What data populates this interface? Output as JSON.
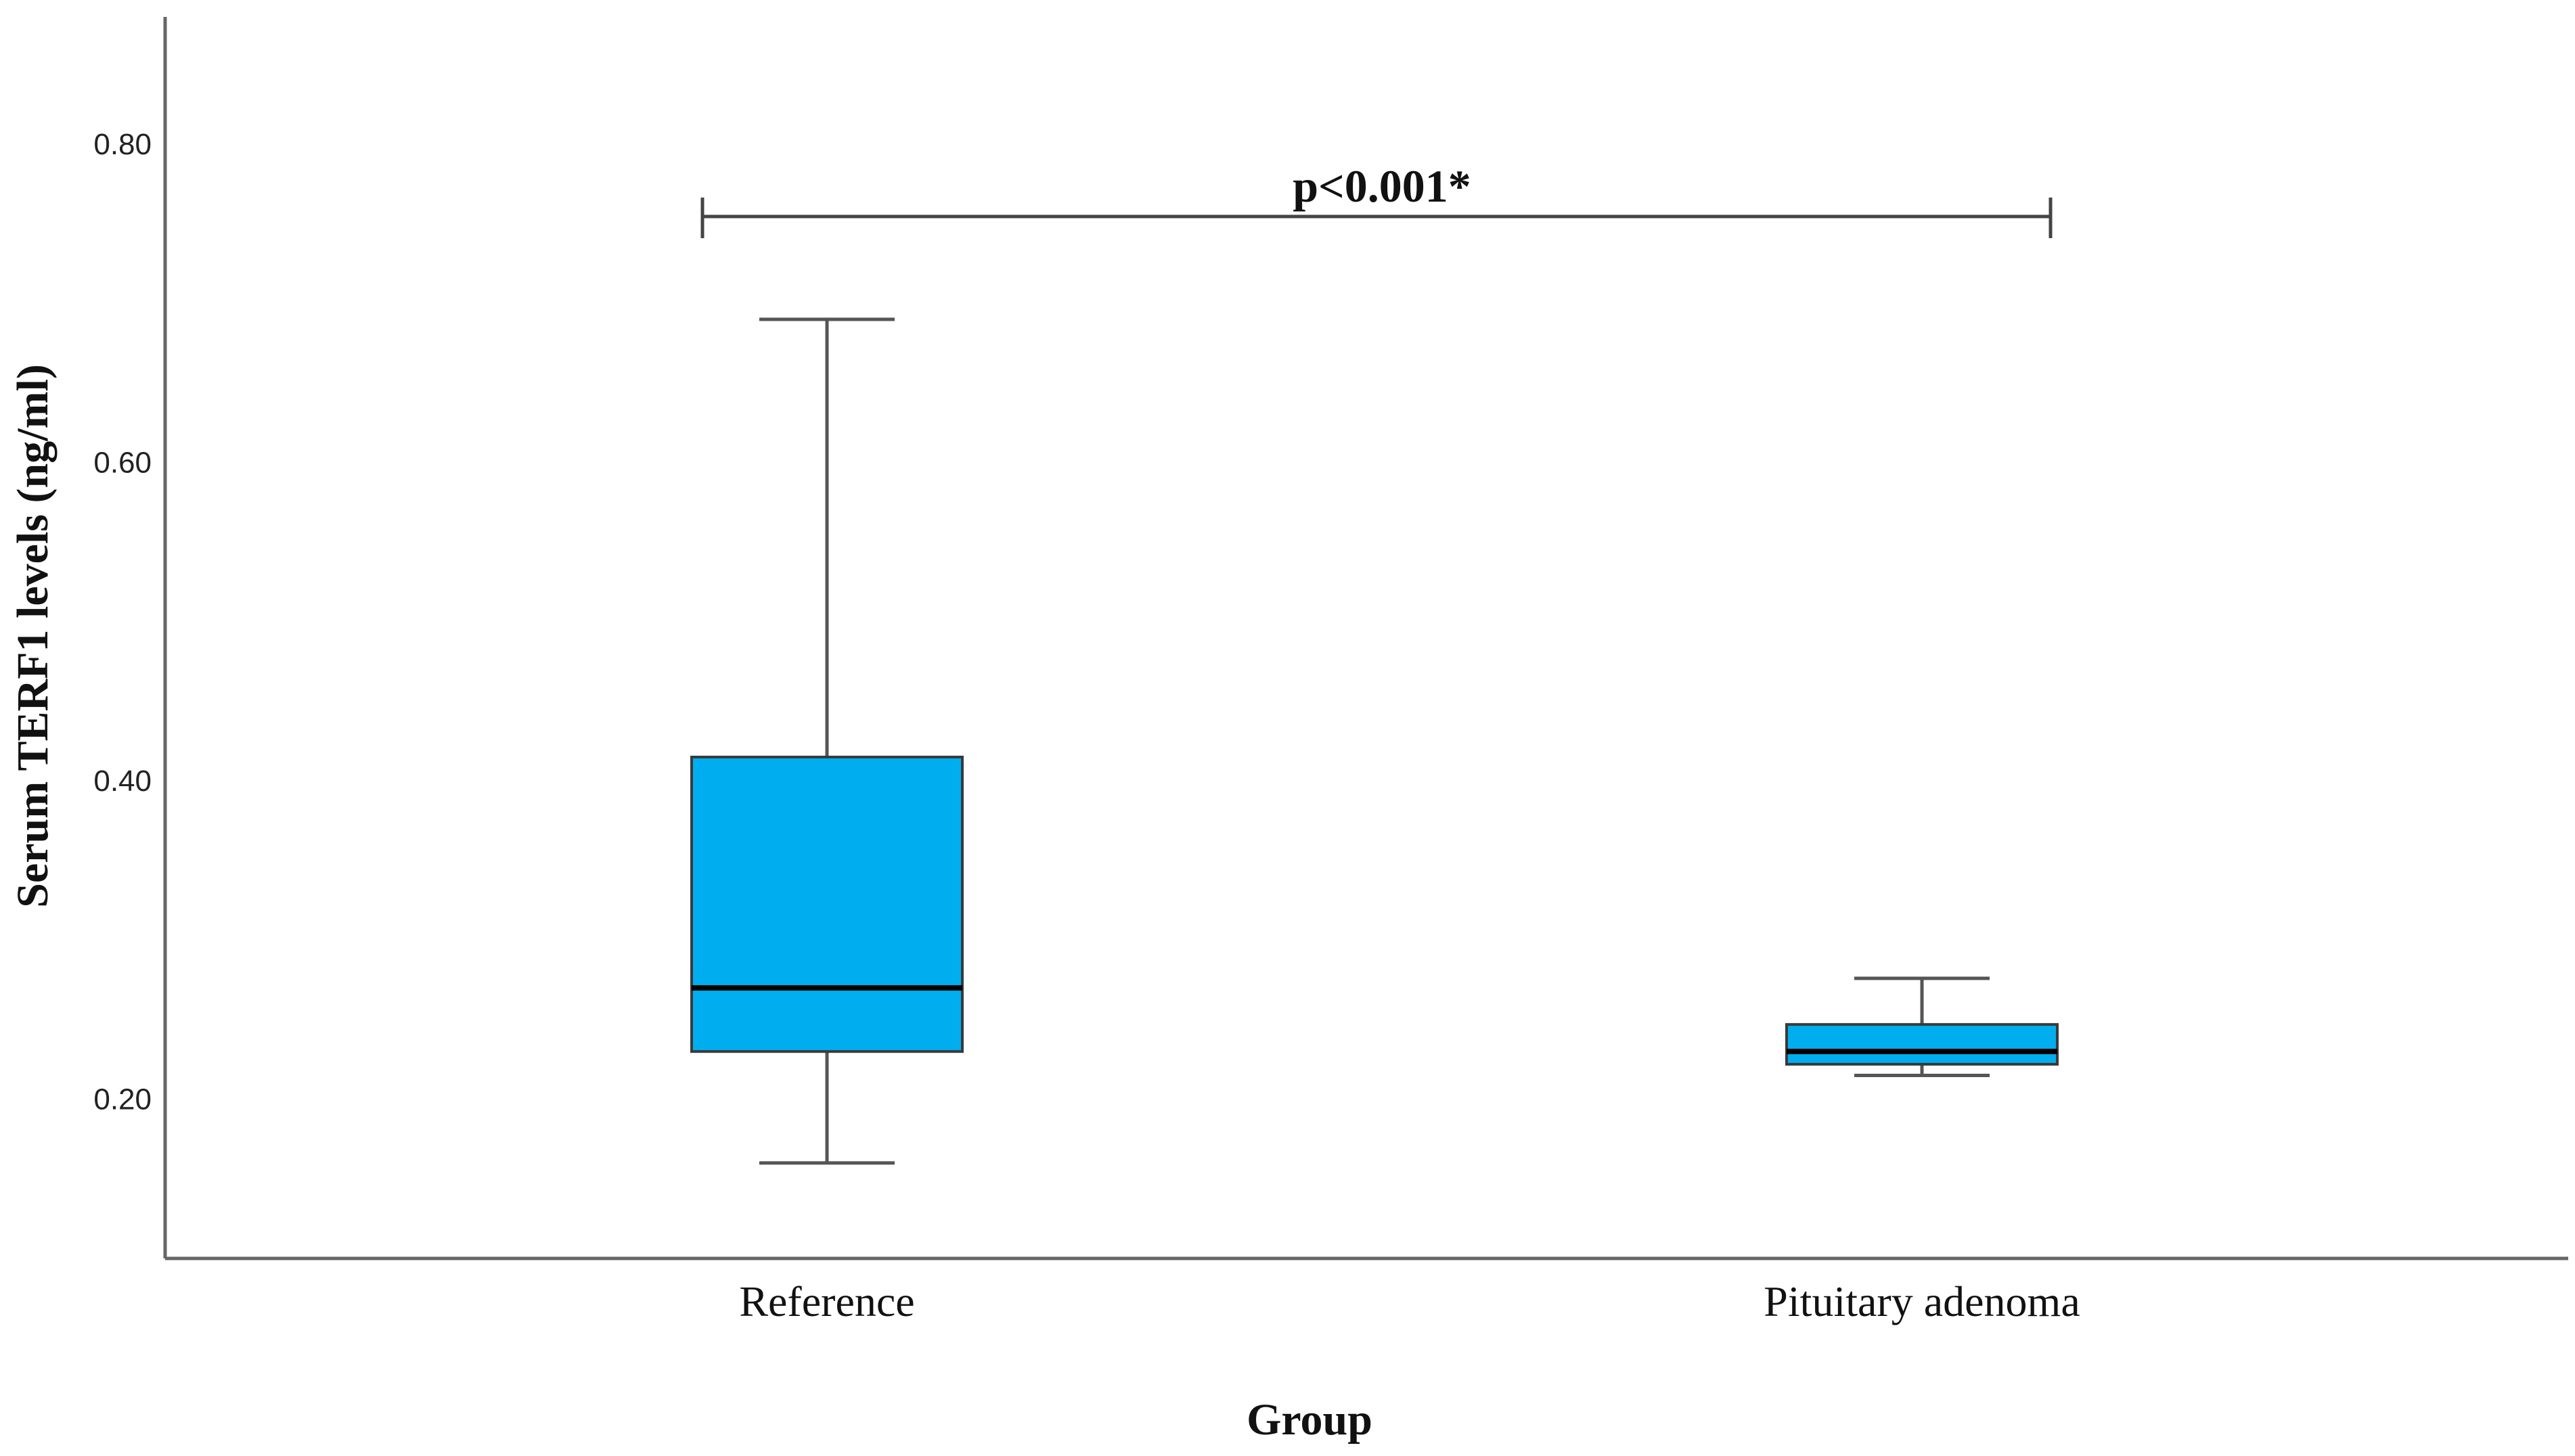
{
  "chart_data": {
    "type": "box",
    "xlabel": "Group",
    "ylabel": "Serum TERF1 levels (ng/ml)",
    "categories": [
      "Reference",
      "Pituitary adenoma"
    ],
    "boxes": [
      {
        "category": "Reference",
        "min": 0.16,
        "q1": 0.23,
        "median": 0.27,
        "q3": 0.415,
        "max": 0.69
      },
      {
        "category": "Pituitary adenoma",
        "min": 0.215,
        "q1": 0.222,
        "median": 0.23,
        "q3": 0.247,
        "max": 0.276
      }
    ],
    "yticks": [
      "0.20",
      "0.40",
      "0.60",
      "0.80"
    ],
    "ytick_values": [
      0.2,
      0.4,
      0.6,
      0.8
    ],
    "ylim": [
      0.1,
      0.88
    ],
    "box_color": "#00aeef",
    "annotation": "p<0.001*",
    "grid": false,
    "legend": "none"
  }
}
